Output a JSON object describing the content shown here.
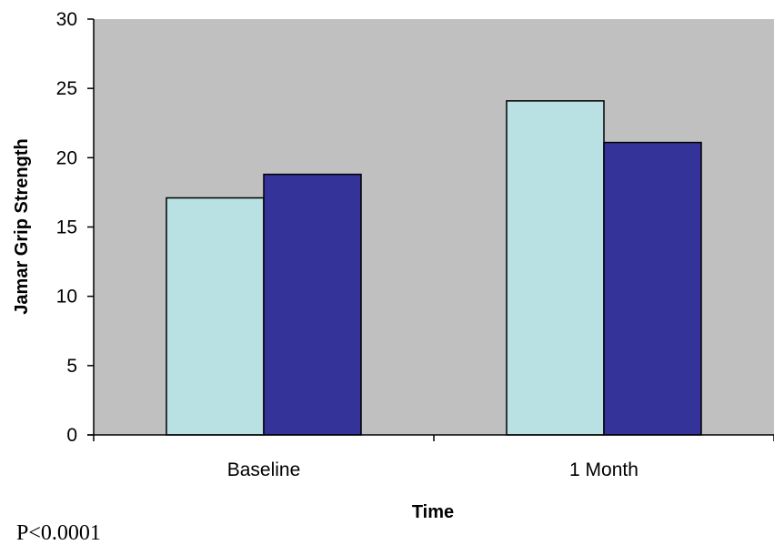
{
  "chart_data": {
    "type": "bar",
    "categories": [
      "Baseline",
      "1 Month"
    ],
    "series": [
      {
        "values": [
          17.1,
          24.1
        ],
        "color": "#b9e0e3"
      },
      {
        "values": [
          18.8,
          21.1
        ],
        "color": "#333399"
      }
    ],
    "xlabel": "Time",
    "ylabel": "Jamar Grip Strength",
    "ylim": [
      0,
      30
    ],
    "yticks": [
      0,
      5,
      10,
      15,
      20,
      25,
      30
    ],
    "plot_background": "#c0c0c0",
    "grid": false,
    "legend": "none"
  },
  "footnote": "P<0.0001"
}
